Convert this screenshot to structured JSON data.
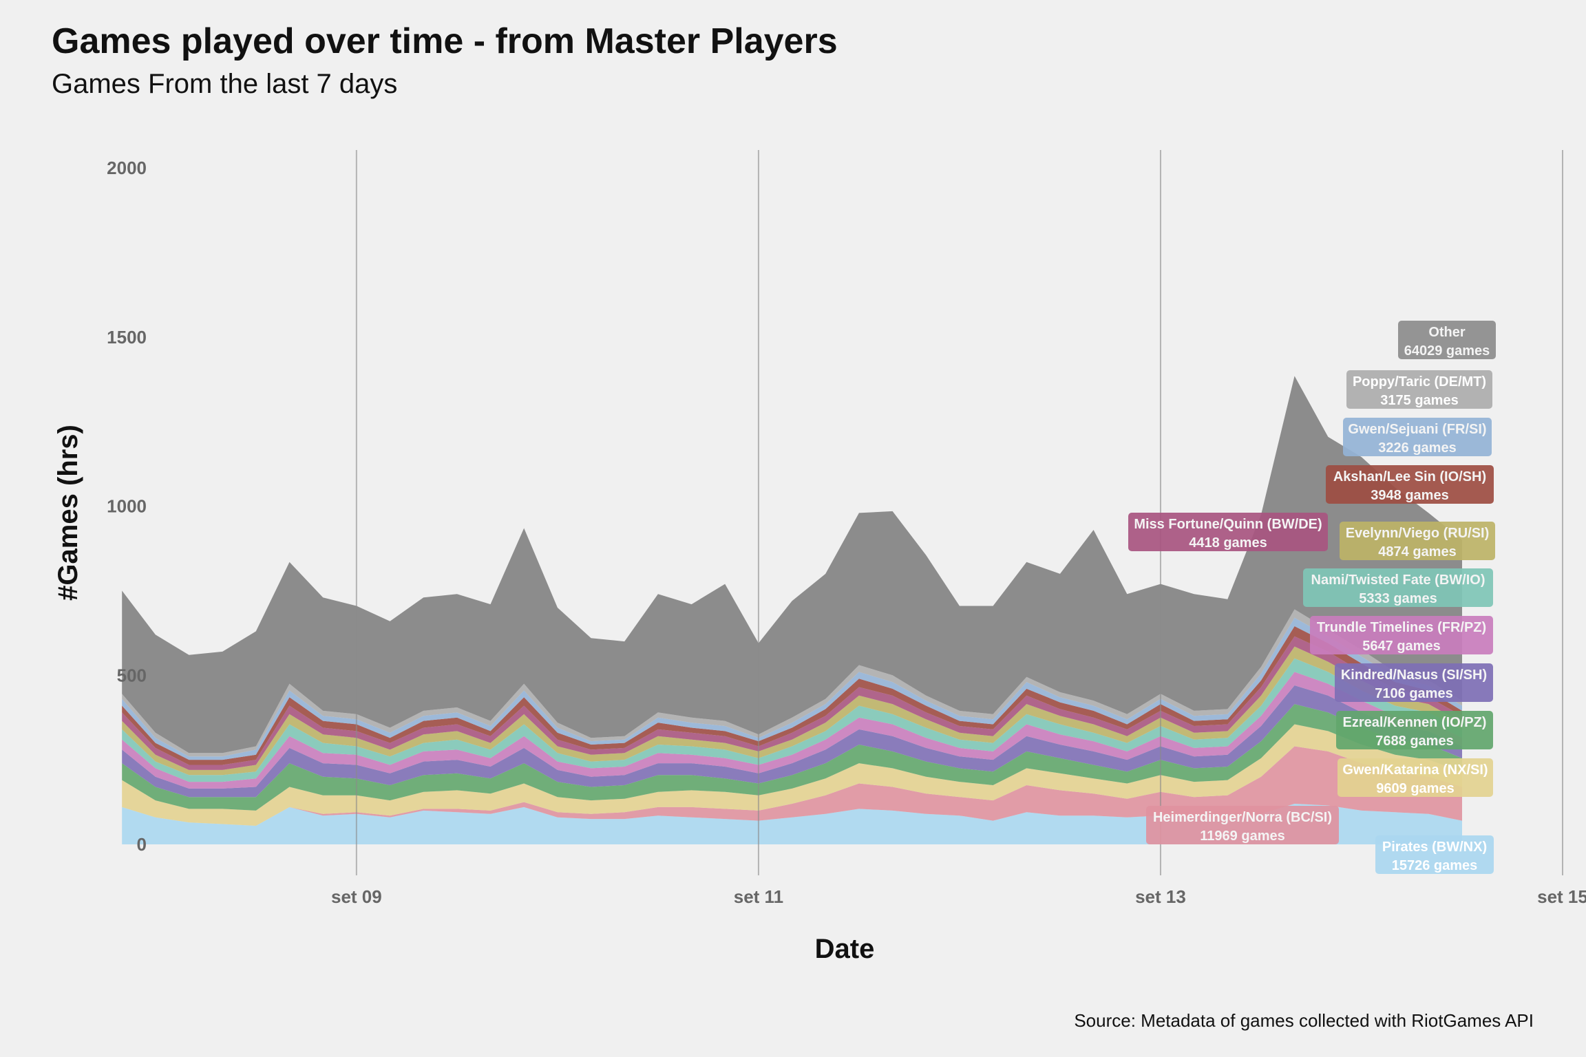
{
  "title": "Games played over time - from Master Players",
  "subtitle": "Games From the last 7 days",
  "caption": "Source: Metadata of games collected with RiotGames API",
  "chart_data": {
    "type": "area",
    "stacked": true,
    "xlabel": "Date",
    "ylabel": "#Games (hrs)",
    "xlim": [
      "2023-09-07T19:00",
      "2023-09-15T00:00"
    ],
    "ylim": [
      0,
      2100
    ],
    "x_ticks": [
      "set 09",
      "set 11",
      "set 13",
      "set 15"
    ],
    "y_ticks": [
      0,
      500,
      1000,
      1500,
      2000
    ],
    "grid": "vertical",
    "x": [
      "2023-09-07T20:00",
      "2023-09-08T00:00",
      "2023-09-08T04:00",
      "2023-09-08T08:00",
      "2023-09-08T12:00",
      "2023-09-08T16:00",
      "2023-09-08T20:00",
      "2023-09-09T00:00",
      "2023-09-09T04:00",
      "2023-09-09T08:00",
      "2023-09-09T12:00",
      "2023-09-09T16:00",
      "2023-09-09T20:00",
      "2023-09-10T00:00",
      "2023-09-10T04:00",
      "2023-09-10T08:00",
      "2023-09-10T12:00",
      "2023-09-10T16:00",
      "2023-09-10T20:00",
      "2023-09-11T00:00",
      "2023-09-11T04:00",
      "2023-09-11T08:00",
      "2023-09-11T12:00",
      "2023-09-11T16:00",
      "2023-09-11T20:00",
      "2023-09-12T00:00",
      "2023-09-12T04:00",
      "2023-09-12T08:00",
      "2023-09-12T12:00",
      "2023-09-12T16:00",
      "2023-09-12T20:00",
      "2023-09-13T00:00",
      "2023-09-13T04:00",
      "2023-09-13T08:00",
      "2023-09-13T12:00",
      "2023-09-13T16:00",
      "2023-09-13T20:00",
      "2023-09-14T00:00",
      "2023-09-14T04:00",
      "2023-09-14T08:00",
      "2023-09-14T12:00"
    ],
    "series": [
      {
        "name": "Pirates (BW/NX)",
        "games": "15726 games",
        "color": "#aad7f0",
        "values": [
          110,
          80,
          65,
          60,
          55,
          110,
          85,
          90,
          80,
          100,
          95,
          90,
          110,
          80,
          75,
          75,
          85,
          80,
          75,
          70,
          80,
          90,
          105,
          100,
          90,
          85,
          70,
          95,
          85,
          85,
          80,
          85,
          80,
          75,
          90,
          120,
          115,
          100,
          95,
          90,
          70
        ]
      },
      {
        "name": "Heimerdinger/Norra (BC/SI)",
        "games": "11969 games",
        "color": "#df929f",
        "values": [
          0,
          0,
          0,
          0,
          0,
          0,
          5,
          5,
          5,
          5,
          10,
          10,
          15,
          15,
          15,
          20,
          25,
          30,
          30,
          30,
          40,
          55,
          75,
          70,
          60,
          55,
          60,
          80,
          75,
          65,
          55,
          70,
          60,
          70,
          110,
          170,
          160,
          140,
          120,
          110,
          100
        ]
      },
      {
        "name": "Gwen/Katarina (NX/SI)",
        "games": "9609 games",
        "color": "#e3d290",
        "values": [
          80,
          50,
          40,
          45,
          45,
          60,
          55,
          50,
          45,
          50,
          55,
          50,
          55,
          45,
          40,
          40,
          45,
          50,
          50,
          45,
          45,
          50,
          60,
          55,
          50,
          45,
          45,
          50,
          50,
          45,
          45,
          50,
          45,
          45,
          55,
          65,
          60,
          55,
          50,
          50,
          45
        ]
      },
      {
        "name": "Ezreal/Kennen (IO/PZ)",
        "games": "7688 games",
        "color": "#62a66c",
        "values": [
          50,
          40,
          35,
          35,
          40,
          70,
          55,
          50,
          45,
          50,
          50,
          45,
          60,
          45,
          40,
          40,
          50,
          45,
          40,
          35,
          40,
          45,
          55,
          50,
          45,
          40,
          40,
          50,
          45,
          40,
          35,
          45,
          40,
          40,
          50,
          60,
          55,
          50,
          45,
          45,
          40
        ]
      },
      {
        "name": "Kindred/Nasus (SI/SH)",
        "games": "7106 games",
        "color": "#7e6fb5",
        "values": [
          40,
          30,
          25,
          25,
          30,
          45,
          40,
          40,
          35,
          40,
          40,
          35,
          45,
          35,
          30,
          30,
          35,
          35,
          35,
          30,
          35,
          40,
          45,
          45,
          40,
          35,
          35,
          45,
          40,
          40,
          35,
          40,
          35,
          35,
          45,
          55,
          50,
          45,
          40,
          40,
          35
        ]
      },
      {
        "name": "Trundle Timelines (FR/PZ)",
        "games": "5647 games",
        "color": "#c97dbd",
        "values": [
          30,
          25,
          20,
          20,
          25,
          35,
          30,
          30,
          25,
          30,
          30,
          25,
          35,
          25,
          25,
          25,
          30,
          25,
          25,
          25,
          25,
          30,
          35,
          35,
          30,
          25,
          25,
          35,
          30,
          30,
          25,
          30,
          25,
          25,
          30,
          40,
          35,
          35,
          30,
          30,
          25
        ]
      },
      {
        "name": "Nami/Twisted Fate (BW/IO)",
        "games": "5333 games",
        "color": "#7fc6b6",
        "values": [
          30,
          20,
          20,
          20,
          20,
          35,
          30,
          25,
          25,
          25,
          30,
          25,
          35,
          25,
          20,
          20,
          25,
          25,
          25,
          20,
          25,
          25,
          35,
          30,
          30,
          25,
          25,
          30,
          30,
          25,
          25,
          30,
          25,
          25,
          30,
          40,
          35,
          30,
          30,
          25,
          25
        ]
      },
      {
        "name": "Evelynn/Viego (RU/SI)",
        "games": "4874 games",
        "color": "#bdb367",
        "values": [
          25,
          20,
          15,
          15,
          20,
          30,
          25,
          25,
          20,
          25,
          25,
          20,
          30,
          20,
          20,
          20,
          25,
          20,
          20,
          20,
          20,
          25,
          30,
          30,
          25,
          20,
          20,
          30,
          25,
          25,
          20,
          25,
          20,
          20,
          30,
          35,
          30,
          30,
          25,
          25,
          20
        ]
      },
      {
        "name": "Miss Fortune/Quinn (BW/DE)",
        "games": "4418 games",
        "color": "#a85580",
        "values": [
          25,
          20,
          15,
          15,
          15,
          25,
          20,
          20,
          20,
          20,
          20,
          20,
          25,
          20,
          15,
          15,
          20,
          20,
          20,
          15,
          20,
          20,
          25,
          25,
          20,
          20,
          20,
          25,
          20,
          20,
          20,
          20,
          20,
          20,
          25,
          30,
          30,
          25,
          25,
          20,
          20
        ]
      },
      {
        "name": "Akshan/Lee Sin (IO/SH)",
        "games": "3948 games",
        "color": "#9d4d42",
        "values": [
          20,
          15,
          15,
          15,
          15,
          25,
          20,
          20,
          15,
          20,
          20,
          15,
          25,
          20,
          15,
          15,
          20,
          15,
          15,
          15,
          15,
          20,
          25,
          20,
          20,
          15,
          15,
          20,
          20,
          20,
          15,
          20,
          15,
          15,
          20,
          30,
          25,
          25,
          20,
          20,
          15
        ]
      },
      {
        "name": "Gwen/Sejuani (FR/SI)",
        "games": "3226 games",
        "color": "#94b3d6",
        "values": [
          20,
          15,
          10,
          10,
          15,
          20,
          15,
          15,
          15,
          15,
          15,
          15,
          20,
          15,
          10,
          10,
          15,
          15,
          15,
          10,
          15,
          15,
          20,
          20,
          15,
          15,
          15,
          20,
          15,
          15,
          15,
          15,
          15,
          15,
          20,
          25,
          20,
          20,
          15,
          15,
          15
        ]
      },
      {
        "name": "Poppy/Taric (DE/MT)",
        "games": "3175 games",
        "color": "#adadad",
        "values": [
          15,
          15,
          10,
          10,
          10,
          20,
          15,
          15,
          15,
          15,
          15,
          15,
          20,
          15,
          10,
          10,
          15,
          15,
          15,
          10,
          15,
          15,
          20,
          20,
          15,
          15,
          15,
          15,
          15,
          15,
          15,
          15,
          15,
          15,
          20,
          25,
          20,
          20,
          15,
          15,
          15
        ]
      },
      {
        "name": "Other",
        "games": "64029 games",
        "color": "#8c8c8c",
        "values": [
          305,
          290,
          290,
          300,
          340,
          360,
          335,
          320,
          315,
          335,
          335,
          345,
          460,
          340,
          295,
          280,
          350,
          335,
          405,
          270,
          345,
          370,
          450,
          485,
          415,
          310,
          320,
          340,
          350,
          505,
          355,
          325,
          345,
          325,
          450,
          690,
          570,
          570,
          545,
          495,
          475
        ]
      }
    ]
  }
}
